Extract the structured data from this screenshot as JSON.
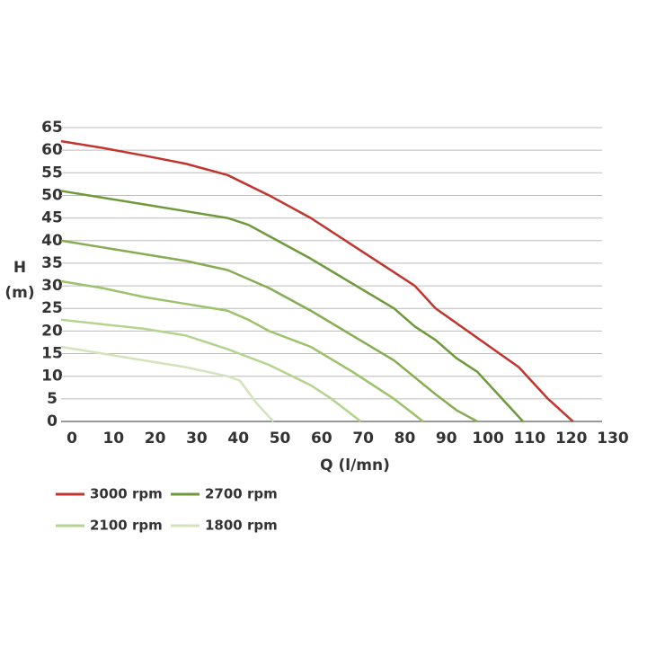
{
  "chart_data": {
    "type": "line",
    "xlabel": "Q (l/mn)",
    "ylabel": [
      "H",
      "(m)"
    ],
    "xlim": [
      0,
      130
    ],
    "xticks": [
      0,
      10,
      20,
      30,
      40,
      50,
      60,
      70,
      80,
      90,
      100,
      110,
      120,
      130
    ],
    "ylim": [
      0,
      65
    ],
    "yticks": [
      0,
      5,
      10,
      15,
      20,
      25,
      30,
      35,
      40,
      45,
      50,
      55,
      60,
      65
    ],
    "grid": true,
    "series": [
      {
        "name": "3000 rpm",
        "color": "#c1352f",
        "x": [
          0,
          10,
          20,
          30,
          40,
          50,
          60,
          70,
          80,
          85,
          90,
          100,
          110,
          117,
          123
        ],
        "values": [
          62,
          60.5,
          58.8,
          57,
          54.5,
          50,
          45,
          39,
          33,
          30,
          25,
          18.5,
          12,
          5,
          0
        ]
      },
      {
        "name": "2700 rpm",
        "color": "#6e9a3c",
        "x": [
          0,
          10,
          20,
          30,
          40,
          45,
          50,
          60,
          70,
          80,
          85,
          90,
          95,
          100,
          106,
          111
        ],
        "values": [
          51,
          49.5,
          48,
          46.5,
          45,
          43.5,
          41,
          36,
          30.5,
          25,
          21,
          18,
          14,
          11,
          5,
          0
        ]
      },
      {
        "color": "#86ad52",
        "x": [
          0,
          10,
          20,
          30,
          40,
          50,
          60,
          70,
          80,
          90,
          95,
          100
        ],
        "values": [
          40,
          38.5,
          37,
          35.5,
          33.5,
          29.5,
          24.5,
          19,
          13.5,
          6,
          2.5,
          0
        ]
      },
      {
        "color": "#9cc36b",
        "x": [
          0,
          10,
          20,
          30,
          40,
          45,
          50,
          60,
          70,
          80,
          87
        ],
        "values": [
          31,
          29.5,
          27.5,
          26,
          24.5,
          22.5,
          20,
          16.5,
          11,
          5,
          0
        ]
      },
      {
        "name": "2100 rpm",
        "color": "#b3d48c",
        "x": [
          0,
          10,
          20,
          30,
          40,
          50,
          60,
          65,
          72
        ],
        "values": [
          22.5,
          21.5,
          20.5,
          19,
          16,
          12.5,
          8,
          5,
          0
        ]
      },
      {
        "name": "1800 rpm",
        "color": "#d3e3bb",
        "x": [
          0,
          10,
          20,
          30,
          40,
          43,
          47,
          51
        ],
        "values": [
          16.5,
          15,
          13.5,
          12,
          10,
          9,
          4,
          0
        ]
      }
    ]
  }
}
